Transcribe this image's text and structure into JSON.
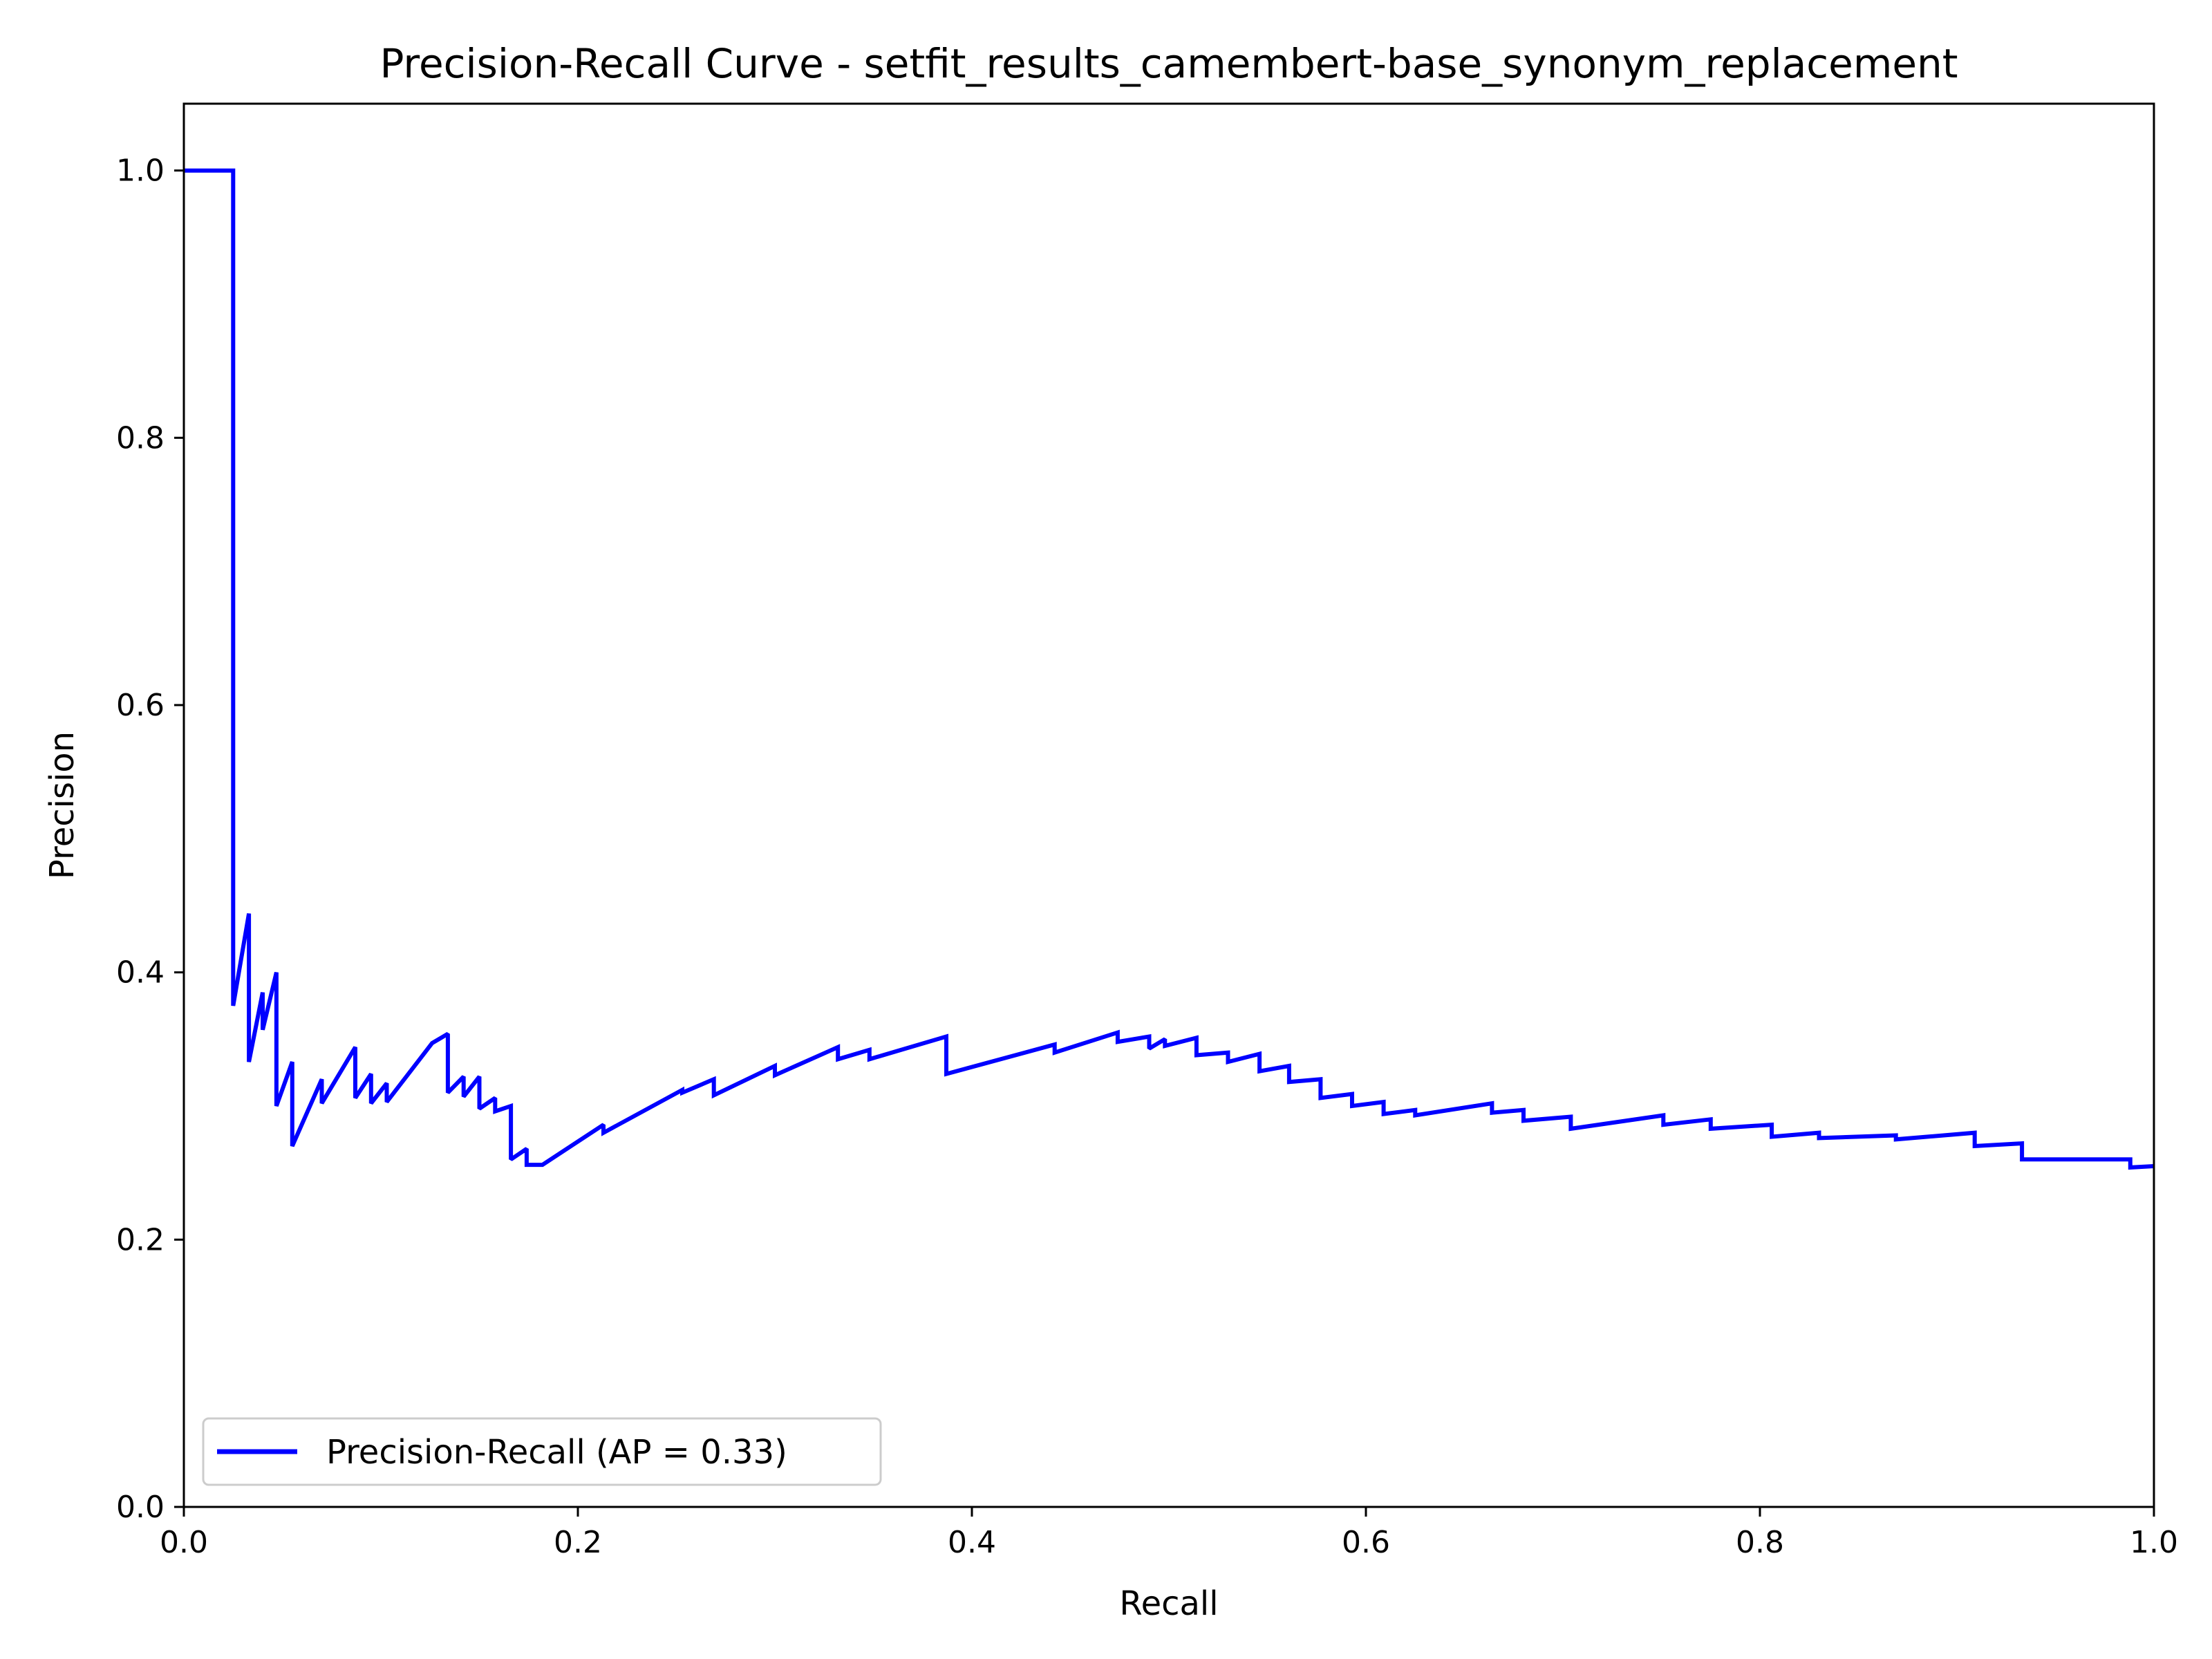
{
  "chart_data": {
    "type": "line",
    "title": "Precision-Recall Curve - setfit_results_camembert-base_synonym_replacement",
    "xlabel": "Recall",
    "ylabel": "Precision",
    "xlim": [
      0.0,
      1.0
    ],
    "ylim": [
      0.0,
      1.05
    ],
    "x_ticks": [
      "0.0",
      "0.2",
      "0.4",
      "0.6",
      "0.8",
      "1.0"
    ],
    "y_ticks": [
      "0.0",
      "0.2",
      "0.4",
      "0.6",
      "0.8",
      "1.0"
    ],
    "grid": false,
    "legend": {
      "placement": "lower-left",
      "entries": [
        "Precision-Recall (AP = 0.33)"
      ]
    },
    "series": [
      {
        "name": "Precision-Recall (AP = 0.33)",
        "color": "#0000ff",
        "x": [
          0.0,
          0.025,
          0.025,
          0.025,
          0.033,
          0.033,
          0.04,
          0.04,
          0.047,
          0.047,
          0.055,
          0.055,
          0.07,
          0.07,
          0.087,
          0.087,
          0.095,
          0.095,
          0.103,
          0.103,
          0.126,
          0.126,
          0.134,
          0.134,
          0.142,
          0.142,
          0.15,
          0.15,
          0.158,
          0.158,
          0.166,
          0.166,
          0.174,
          0.174,
          0.182,
          0.182,
          0.213,
          0.213,
          0.253,
          0.253,
          0.269,
          0.269,
          0.3,
          0.3,
          0.332,
          0.332,
          0.348,
          0.348,
          0.387,
          0.387,
          0.442,
          0.442,
          0.474,
          0.474,
          0.49,
          0.49,
          0.498,
          0.498,
          0.514,
          0.514,
          0.53,
          0.53,
          0.546,
          0.546,
          0.561,
          0.561,
          0.577,
          0.577,
          0.593,
          0.593,
          0.609,
          0.609,
          0.625,
          0.625,
          0.664,
          0.664,
          0.68,
          0.68,
          0.704,
          0.704,
          0.751,
          0.751,
          0.775,
          0.775,
          0.806,
          0.806,
          0.83,
          0.83,
          0.869,
          0.869,
          0.909,
          0.909,
          0.933,
          0.933,
          0.988,
          0.988,
          1.0
        ],
        "y": [
          1.0,
          1.0,
          0.375,
          0.375,
          0.444,
          0.333,
          0.385,
          0.357,
          0.4,
          0.3,
          0.333,
          0.27,
          0.32,
          0.302,
          0.344,
          0.306,
          0.324,
          0.302,
          0.317,
          0.303,
          0.347,
          0.347,
          0.354,
          0.31,
          0.322,
          0.307,
          0.322,
          0.298,
          0.306,
          0.296,
          0.3,
          0.26,
          0.268,
          0.256,
          0.256,
          0.256,
          0.286,
          0.28,
          0.312,
          0.31,
          0.32,
          0.308,
          0.33,
          0.323,
          0.344,
          0.335,
          0.342,
          0.335,
          0.352,
          0.324,
          0.346,
          0.34,
          0.355,
          0.348,
          0.352,
          0.343,
          0.35,
          0.345,
          0.351,
          0.338,
          0.34,
          0.333,
          0.339,
          0.326,
          0.33,
          0.318,
          0.32,
          0.306,
          0.309,
          0.3,
          0.303,
          0.294,
          0.297,
          0.293,
          0.302,
          0.295,
          0.297,
          0.289,
          0.292,
          0.283,
          0.293,
          0.286,
          0.29,
          0.283,
          0.286,
          0.277,
          0.28,
          0.276,
          0.278,
          0.275,
          0.28,
          0.27,
          0.272,
          0.26,
          0.26,
          0.254,
          0.255
        ]
      }
    ]
  }
}
